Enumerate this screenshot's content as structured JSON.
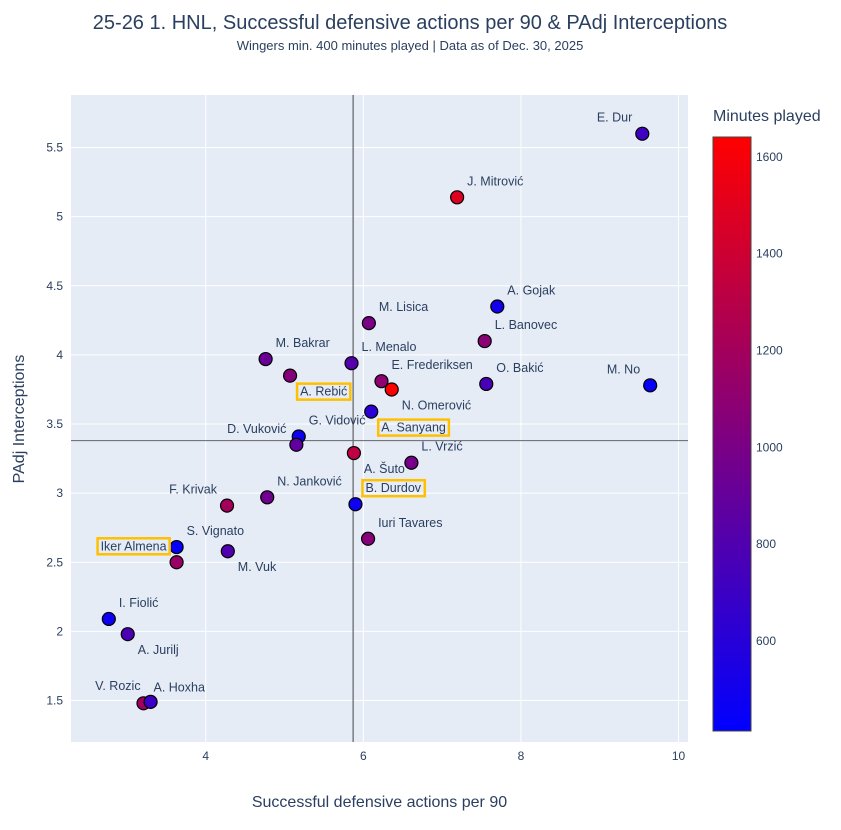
{
  "chart_data": {
    "type": "scatter",
    "title": "25-26 1. HNL, Successful defensive actions per 90 & PAdj Interceptions",
    "subtitle": "Wingers min. 400 minutes played | Data as of Dec. 30, 2025",
    "xlabel": "Successful defensive actions per 90",
    "ylabel": "PAdj Interceptions",
    "xlim": [
      2.29,
      10.12
    ],
    "ylim": [
      1.2,
      5.88
    ],
    "xticks": [
      4,
      6,
      8,
      10
    ],
    "yticks": [
      1.5,
      2,
      2.5,
      3,
      3.5,
      4,
      4.5,
      5,
      5.5
    ],
    "grid": true,
    "reference_lines": {
      "x_mean": 5.87,
      "y_mean": 3.38
    },
    "colorbar": {
      "title": "Minutes played",
      "range": [
        414,
        1641
      ],
      "ticks": [
        600,
        800,
        1000,
        1200,
        1400,
        1600
      ],
      "low_color": "#0000ff",
      "high_color": "#ff0000"
    },
    "highlight_color": "#ffc000",
    "points": [
      {
        "name": "E. Dur",
        "x": 9.54,
        "y": 5.6,
        "minutes": 720
      },
      {
        "name": "J. Mitrović",
        "x": 7.19,
        "y": 5.14,
        "minutes": 1480
      },
      {
        "name": "A. Gojak",
        "x": 7.7,
        "y": 4.35,
        "minutes": 500
      },
      {
        "name": "L. Banovec",
        "x": 7.54,
        "y": 4.1,
        "minutes": 1080
      },
      {
        "name": "O. Bakić",
        "x": 7.56,
        "y": 3.79,
        "minutes": 760
      },
      {
        "name": "M. No",
        "x": 9.64,
        "y": 3.78,
        "minutes": 450
      },
      {
        "name": "M. Lisica",
        "x": 6.07,
        "y": 4.23,
        "minutes": 1000
      },
      {
        "name": "M. Bakrar",
        "x": 4.76,
        "y": 3.97,
        "minutes": 920
      },
      {
        "name": "A. Rebić",
        "x": 5.07,
        "y": 3.85,
        "minutes": 1050,
        "highlight": true
      },
      {
        "name": "L. Menalo",
        "x": 5.85,
        "y": 3.94,
        "minutes": 820
      },
      {
        "name": "E. Frederiksen",
        "x": 6.23,
        "y": 3.81,
        "minutes": 1100
      },
      {
        "name": "N. Omerović",
        "x": 6.36,
        "y": 3.75,
        "minutes": 1630
      },
      {
        "name": "A. Sanyang",
        "x": 6.1,
        "y": 3.59,
        "minutes": 620,
        "highlight": true
      },
      {
        "name": "G. Vidović",
        "x": 5.18,
        "y": 3.41,
        "minutes": 480
      },
      {
        "name": "D. Vuković",
        "x": 5.15,
        "y": 3.35,
        "minutes": 880
      },
      {
        "name": "A. Šuto",
        "x": 5.88,
        "y": 3.29,
        "minutes": 1320
      },
      {
        "name": "L. Vrzić",
        "x": 6.61,
        "y": 3.22,
        "minutes": 980
      },
      {
        "name": "N. Janković",
        "x": 4.78,
        "y": 2.97,
        "minutes": 950
      },
      {
        "name": "F. Krivak",
        "x": 4.27,
        "y": 2.91,
        "minutes": 1200
      },
      {
        "name": "B. Durdov",
        "x": 5.9,
        "y": 2.92,
        "minutes": 480,
        "highlight": true
      },
      {
        "name": "Iuri Tavares",
        "x": 6.06,
        "y": 2.67,
        "minutes": 1060
      },
      {
        "name": "S. Vignato",
        "x": 3.63,
        "y": 2.61,
        "minutes": 440
      },
      {
        "name": "M. Vuk",
        "x": 4.28,
        "y": 2.58,
        "minutes": 800
      },
      {
        "name": "Iker Almena",
        "x": 3.63,
        "y": 2.5,
        "minutes": 1150,
        "highlight": true
      },
      {
        "name": "I. Fiolić",
        "x": 2.77,
        "y": 2.09,
        "minutes": 480
      },
      {
        "name": "A. Jurilj",
        "x": 3.01,
        "y": 1.98,
        "minutes": 780
      },
      {
        "name": "A. Hoxha",
        "x": 3.21,
        "y": 1.48,
        "minutes": 1180
      },
      {
        "name": "V. Rozic",
        "x": 3.3,
        "y": 1.49,
        "minutes": 700
      }
    ]
  }
}
